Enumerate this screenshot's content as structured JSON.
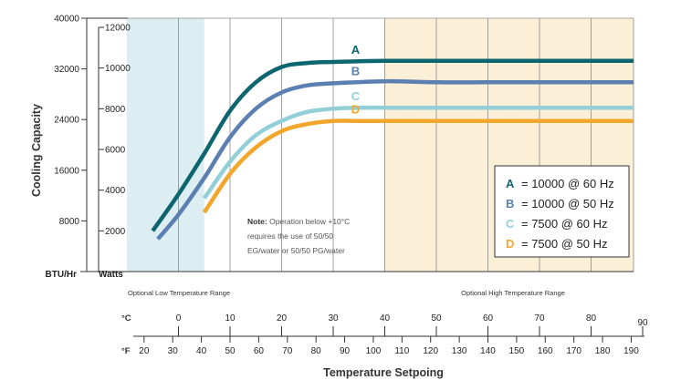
{
  "chart_data": {
    "type": "line",
    "xlabel": "Temperature Setpoing",
    "ylabel": "Cooling Capacity",
    "x_unit_c": "°C",
    "x_unit_f": "°F",
    "y_left_unit": "BTU/Hr",
    "y_right_unit": "Watts",
    "xlim_c": [
      -10,
      90
    ],
    "ylim_watts": [
      0,
      12000
    ],
    "ylim_btu": [
      0,
      40000
    ],
    "celsius_ticks": [
      0,
      10,
      20,
      30,
      40,
      50,
      60,
      70,
      80,
      90
    ],
    "fahrenheit_ticks": [
      20,
      30,
      40,
      50,
      60,
      70,
      80,
      90,
      100,
      110,
      120,
      130,
      140,
      150,
      160,
      170,
      180,
      190
    ],
    "watts_ticks": [
      2000,
      4000,
      6000,
      8000,
      10000,
      12000
    ],
    "btu_ticks": [
      8000,
      16000,
      24000,
      32000,
      40000
    ],
    "low_range": {
      "label": "Optional Low Temperature Range",
      "from_c": -10,
      "to_c": 5,
      "color": "#dceef2"
    },
    "high_range": {
      "label": "Optional High Temperature Range",
      "from_c": 40,
      "to_c": 90,
      "color": "#fcefd8"
    },
    "note_bold": "Note:",
    "note_lines": [
      " Operation below +10°C",
      "requires the use of 50/50",
      "EG/water or 50/50 PG/water"
    ],
    "series": [
      {
        "name": "A",
        "legend_text": "= 10000 @ 60 Hz",
        "color": "#0d6570",
        "x": [
          -5,
          0,
          5,
          10,
          15,
          20,
          25,
          30,
          40,
          50,
          60,
          70,
          80,
          90
        ],
        "y": [
          2000,
          3800,
          5800,
          7900,
          9300,
          10050,
          10250,
          10300,
          10350,
          10350,
          10350,
          10350,
          10350,
          10350
        ]
      },
      {
        "name": "B",
        "legend_text": "= 10000 @ 50 Hz",
        "color": "#5b7fb0",
        "x": [
          -4,
          0,
          5,
          10,
          15,
          20,
          25,
          30,
          40,
          50,
          60,
          70,
          80,
          90
        ],
        "y": [
          1600,
          2800,
          4600,
          6600,
          8000,
          8800,
          9150,
          9250,
          9350,
          9300,
          9300,
          9300,
          9300,
          9300
        ]
      },
      {
        "name": "C",
        "legend_text": "= 7500 @ 60 Hz",
        "color": "#93cfd9",
        "x": [
          5,
          10,
          15,
          20,
          25,
          30,
          35,
          40,
          50,
          60,
          70,
          80,
          90
        ],
        "y": [
          3600,
          5400,
          6700,
          7400,
          7850,
          8000,
          8050,
          8050,
          8050,
          8050,
          8050,
          8050,
          8050
        ]
      },
      {
        "name": "D",
        "legend_text": "= 7500 @ 50 Hz",
        "color": "#f2a72c",
        "x": [
          5,
          10,
          15,
          20,
          25,
          30,
          35,
          40,
          50,
          60,
          70,
          80,
          90
        ],
        "y": [
          2900,
          4800,
          6100,
          6900,
          7250,
          7400,
          7400,
          7400,
          7400,
          7400,
          7400,
          7400,
          7400
        ]
      }
    ],
    "grid": true,
    "legend_position": "bottom-right"
  }
}
